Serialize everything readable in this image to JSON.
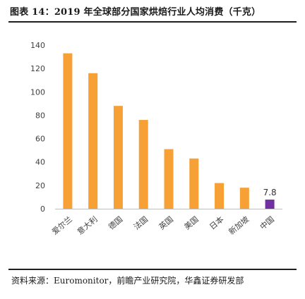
{
  "header": {
    "title": "图表 14：2019 年全球部分国家烘焙行业人均消费（千克）"
  },
  "footer": {
    "source": "资料来源：Euromonitor，前瞻产业研究院，华鑫证券研发部"
  },
  "colors": {
    "bar": "#f7a035",
    "highlight": "#7030a0",
    "axis": "#bfbfbf",
    "text": "#404040"
  },
  "chart_data": {
    "type": "bar",
    "categories": [
      "爱尔兰",
      "意大利",
      "德国",
      "法国",
      "英国",
      "美国",
      "日本",
      "新加坡",
      "中国"
    ],
    "values": [
      133,
      116,
      88,
      76,
      51,
      43,
      22,
      18,
      7.8
    ],
    "highlight_index": 8,
    "data_labels": {
      "8": "7.8"
    },
    "y_ticks": [
      0,
      20,
      40,
      60,
      80,
      100,
      120,
      140
    ],
    "ylim": [
      0,
      140
    ],
    "grid": false,
    "legend": "none"
  }
}
